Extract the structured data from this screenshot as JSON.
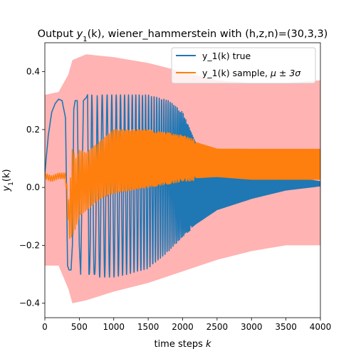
{
  "chart_data": {
    "type": "line",
    "title_prefix": "Output ",
    "title_symbol": "y",
    "title_subscript": "1",
    "title_arg": "(k)",
    "title_suffix": ", wiener_hammerstein with (h,z,n)=(30,3,3)",
    "xlabel_text": "time steps ",
    "xlabel_symbol": "k",
    "ylabel_symbol": "y",
    "ylabel_subscript": "1",
    "ylabel_arg": "(k)",
    "xlim": [
      0,
      4000
    ],
    "ylim": [
      -0.45,
      0.5
    ],
    "x_ticks": [
      0,
      500,
      1000,
      1500,
      2000,
      2500,
      3000,
      3500,
      4000
    ],
    "x_tick_labels": [
      "0",
      "500",
      "1000",
      "1500",
      "2000",
      "2500",
      "3000",
      "3500",
      "4000"
    ],
    "y_ticks": [
      -0.4,
      -0.2,
      0.0,
      0.2,
      0.4
    ],
    "y_tick_labels": [
      "−0.4",
      "−0.2",
      "0.0",
      "0.2",
      "0.4"
    ],
    "grid": false,
    "legend_position": "top-right",
    "legend_true_label": "y_1(k) true",
    "legend_sample_label_prefix": "y_1(k) sample, ",
    "legend_sample_label_math": "μ ± 3σ",
    "colors": {
      "true": "#1f77b4",
      "sample": "#ff7f0e",
      "band": "#ffb3b3"
    },
    "series": [
      {
        "name": "y_1(k) true",
        "color": "#1f77b4",
        "x": [
          0,
          50,
          100,
          150,
          200,
          250,
          300,
          330,
          350,
          380,
          400,
          420,
          440,
          470,
          500,
          520,
          560,
          600,
          620,
          640,
          680,
          700,
          720,
          760,
          800,
          1000,
          1200,
          1500,
          1800,
          2000,
          2200,
          2500,
          3000,
          3500,
          4000
        ],
        "upper": [
          0.05,
          0.18,
          0.26,
          0.29,
          0.305,
          0.3,
          0.24,
          -0.27,
          -0.285,
          -0.285,
          -0.2,
          0.27,
          0.3,
          0.3,
          -0.2,
          -0.3,
          0.3,
          0.31,
          0.32,
          -0.3,
          0.32,
          0.32,
          -0.3,
          0.32,
          0.32,
          0.32,
          0.32,
          0.32,
          0.3,
          0.26,
          0.15,
          0.09,
          0.06,
          0.04,
          0.02
        ],
        "lower": [
          0.05,
          0.18,
          0.26,
          0.29,
          0.305,
          0.3,
          0.24,
          -0.27,
          -0.285,
          -0.285,
          -0.2,
          0.27,
          0.3,
          0.3,
          -0.2,
          -0.3,
          0.3,
          0.31,
          0.32,
          -0.3,
          -0.31,
          -0.31,
          -0.3,
          -0.31,
          -0.31,
          -0.31,
          -0.3,
          -0.28,
          -0.22,
          -0.17,
          -0.13,
          -0.08,
          -0.04,
          -0.01,
          0.005
        ]
      },
      {
        "name": "y_1(k) sample, μ ± 3σ",
        "color": "#ff7f0e",
        "x": [
          0,
          100,
          200,
          300,
          350,
          400,
          450,
          500,
          600,
          800,
          1000,
          1500,
          2000,
          2500,
          3000,
          3500,
          4000
        ],
        "upper": [
          0.05,
          0.04,
          0.05,
          0.05,
          -0.05,
          0.14,
          0.1,
          0.13,
          0.12,
          0.16,
          0.2,
          0.2,
          0.18,
          0.14,
          0.14,
          0.14,
          0.14
        ],
        "lower": [
          0.03,
          0.02,
          0.03,
          0.03,
          -0.18,
          -0.17,
          -0.14,
          -0.1,
          -0.08,
          -0.04,
          -0.02,
          0.0,
          0.02,
          0.03,
          0.02,
          0.02,
          0.02
        ]
      }
    ],
    "band": {
      "name": "μ ± 3σ",
      "x": [
        0,
        200,
        340,
        400,
        600,
        1000,
        1500,
        2000,
        2500,
        3000,
        3500,
        4000
      ],
      "upper": [
        0.32,
        0.33,
        0.39,
        0.44,
        0.46,
        0.45,
        0.43,
        0.4,
        0.37,
        0.36,
        0.36,
        0.37
      ],
      "lower": [
        -0.27,
        -0.27,
        -0.35,
        -0.4,
        -0.39,
        -0.36,
        -0.33,
        -0.29,
        -0.25,
        -0.22,
        -0.2,
        -0.2
      ]
    }
  }
}
